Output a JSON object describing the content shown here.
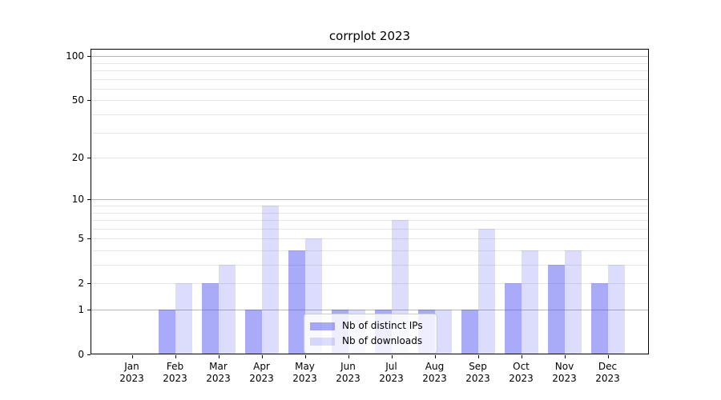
{
  "title": "corrplot 2023",
  "legend": {
    "items": [
      {
        "label": "Nb of distinct IPs"
      },
      {
        "label": "Nb of downloads"
      }
    ]
  },
  "colors": {
    "bar_ips_rendered": "#aaabf9",
    "bar_downloads_rendered": "#dcddfb",
    "grid_major": "#b8b8b8",
    "grid_minor": "#e7e7e7",
    "spine": "#000000",
    "background": "#ffffff"
  },
  "chart_data": {
    "type": "bar",
    "title": "corrplot 2023",
    "categories": [
      "Jan",
      "Feb",
      "Mar",
      "Apr",
      "May",
      "Jun",
      "Jul",
      "Aug",
      "Sep",
      "Oct",
      "Nov",
      "Dec"
    ],
    "year_label": "2023",
    "series": [
      {
        "name": "Nb of distinct IPs",
        "base_color": "#3c3ef0",
        "alpha": 0.44,
        "values": [
          0,
          1,
          2,
          1,
          4,
          1,
          1,
          1,
          1,
          2,
          3,
          2
        ]
      },
      {
        "name": "Nb of downloads",
        "base_color": "#3c3ef0",
        "alpha": 0.18,
        "values": [
          0,
          2,
          3,
          9,
          5,
          1,
          7,
          1,
          6,
          4,
          4,
          3
        ]
      }
    ],
    "yscale": "log1p",
    "ylim": [
      0,
      112
    ],
    "yticks": [
      0,
      1,
      2,
      5,
      10,
      20,
      50,
      100
    ],
    "major_gridlines": [
      1,
      10,
      100
    ],
    "minor_gridlines": [
      2,
      3,
      4,
      5,
      6,
      7,
      8,
      9,
      20,
      30,
      40,
      50,
      60,
      70,
      80,
      90
    ],
    "grid": true,
    "legend_position": "lower center",
    "xlabel": "",
    "ylabel": ""
  }
}
